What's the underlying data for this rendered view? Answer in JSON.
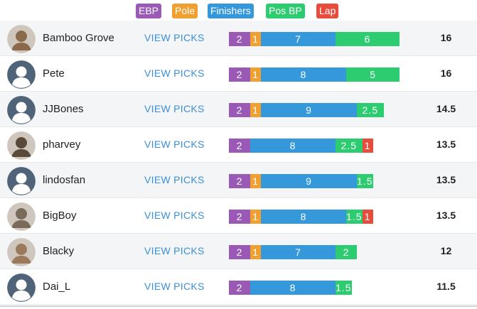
{
  "legend": [
    {
      "label": "EBP",
      "color": "#9b59b6"
    },
    {
      "label": "Pole",
      "color": "#f0a030"
    },
    {
      "label": "Finishers",
      "color": "#3498db"
    },
    {
      "label": "Pos BP",
      "color": "#2ecc71"
    },
    {
      "label": "Lap",
      "color": "#e74c3c"
    }
  ],
  "colors": {
    "ebp": "#9b59b6",
    "pole": "#f0a030",
    "finishers": "#3498db",
    "posbp": "#2ecc71",
    "lap": "#e74c3c",
    "link": "#3a8fd9",
    "avatar_default": "#4f6479"
  },
  "view_picks_label": "VIEW PICKS",
  "rows": [
    {
      "name": "Bamboo Grove",
      "avatar": "photo-avatar",
      "total": "16",
      "segments": [
        {
          "key": "ebp",
          "value": 2,
          "label": "2"
        },
        {
          "key": "pole",
          "value": 1,
          "label": "1"
        },
        {
          "key": "finishers",
          "value": 7,
          "label": "7"
        },
        {
          "key": "posbp",
          "value": 6,
          "label": "6"
        }
      ]
    },
    {
      "name": "Pete",
      "avatar": "default-user-icon",
      "total": "16",
      "segments": [
        {
          "key": "ebp",
          "value": 2,
          "label": "2"
        },
        {
          "key": "pole",
          "value": 1,
          "label": "1"
        },
        {
          "key": "finishers",
          "value": 8,
          "label": "8"
        },
        {
          "key": "posbp",
          "value": 5,
          "label": "5"
        }
      ]
    },
    {
      "name": "JJBones",
      "avatar": "default-user-icon",
      "total": "14.5",
      "segments": [
        {
          "key": "ebp",
          "value": 2,
          "label": "2"
        },
        {
          "key": "pole",
          "value": 1,
          "label": "1"
        },
        {
          "key": "finishers",
          "value": 9,
          "label": "9"
        },
        {
          "key": "posbp",
          "value": 2.5,
          "label": "2.5"
        }
      ]
    },
    {
      "name": "pharvey",
      "avatar": "photo-avatar",
      "total": "13.5",
      "segments": [
        {
          "key": "ebp",
          "value": 2,
          "label": "2"
        },
        {
          "key": "finishers",
          "value": 8,
          "label": "8"
        },
        {
          "key": "posbp",
          "value": 2.5,
          "label": "2.5"
        },
        {
          "key": "lap",
          "value": 1,
          "label": "1"
        }
      ]
    },
    {
      "name": "lindosfan",
      "avatar": "default-user-icon",
      "total": "13.5",
      "segments": [
        {
          "key": "ebp",
          "value": 2,
          "label": "2"
        },
        {
          "key": "pole",
          "value": 1,
          "label": "1"
        },
        {
          "key": "finishers",
          "value": 9,
          "label": "9"
        },
        {
          "key": "posbp",
          "value": 1.5,
          "label": "1.5"
        }
      ]
    },
    {
      "name": "BigBoy",
      "avatar": "photo-avatar",
      "total": "13.5",
      "segments": [
        {
          "key": "ebp",
          "value": 2,
          "label": "2"
        },
        {
          "key": "pole",
          "value": 1,
          "label": "1"
        },
        {
          "key": "finishers",
          "value": 8,
          "label": "8"
        },
        {
          "key": "posbp",
          "value": 1.5,
          "label": "1.5"
        },
        {
          "key": "lap",
          "value": 1,
          "label": "1"
        }
      ]
    },
    {
      "name": "Blacky",
      "avatar": "photo-avatar",
      "total": "12",
      "segments": [
        {
          "key": "ebp",
          "value": 2,
          "label": "2"
        },
        {
          "key": "pole",
          "value": 1,
          "label": "1"
        },
        {
          "key": "finishers",
          "value": 7,
          "label": "7"
        },
        {
          "key": "posbp",
          "value": 2,
          "label": "2"
        }
      ]
    },
    {
      "name": "Dai_L",
      "avatar": "default-user-icon",
      "total": "11.5",
      "segments": [
        {
          "key": "ebp",
          "value": 2,
          "label": "2"
        },
        {
          "key": "finishers",
          "value": 8,
          "label": "8"
        },
        {
          "key": "posbp",
          "value": 1.5,
          "label": "1.5"
        }
      ]
    }
  ]
}
